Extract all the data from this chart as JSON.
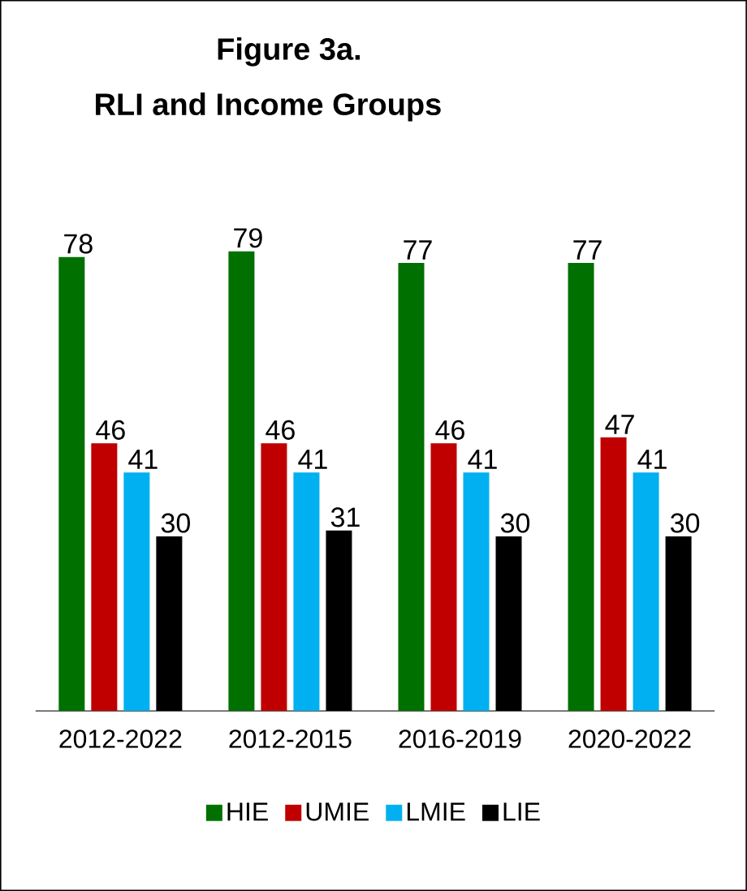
{
  "chart_data": {
    "type": "bar",
    "title": "Figure 3a.",
    "subtitle": "RLI and Income Groups",
    "categories": [
      "2012-2022",
      "2012-2015",
      "2016-2019",
      "2020-2022"
    ],
    "series": [
      {
        "name": "HIE",
        "color": "#007000",
        "values": [
          78,
          79,
          77,
          77
        ]
      },
      {
        "name": "UMIE",
        "color": "#c00000",
        "values": [
          46,
          46,
          46,
          47
        ]
      },
      {
        "name": "LMIE",
        "color": "#00b0f0",
        "values": [
          41,
          41,
          41,
          41
        ]
      },
      {
        "name": "LIE",
        "color": "#000000",
        "values": [
          30,
          31,
          30,
          30
        ]
      }
    ],
    "data_labels": true,
    "legend": "bottom"
  }
}
